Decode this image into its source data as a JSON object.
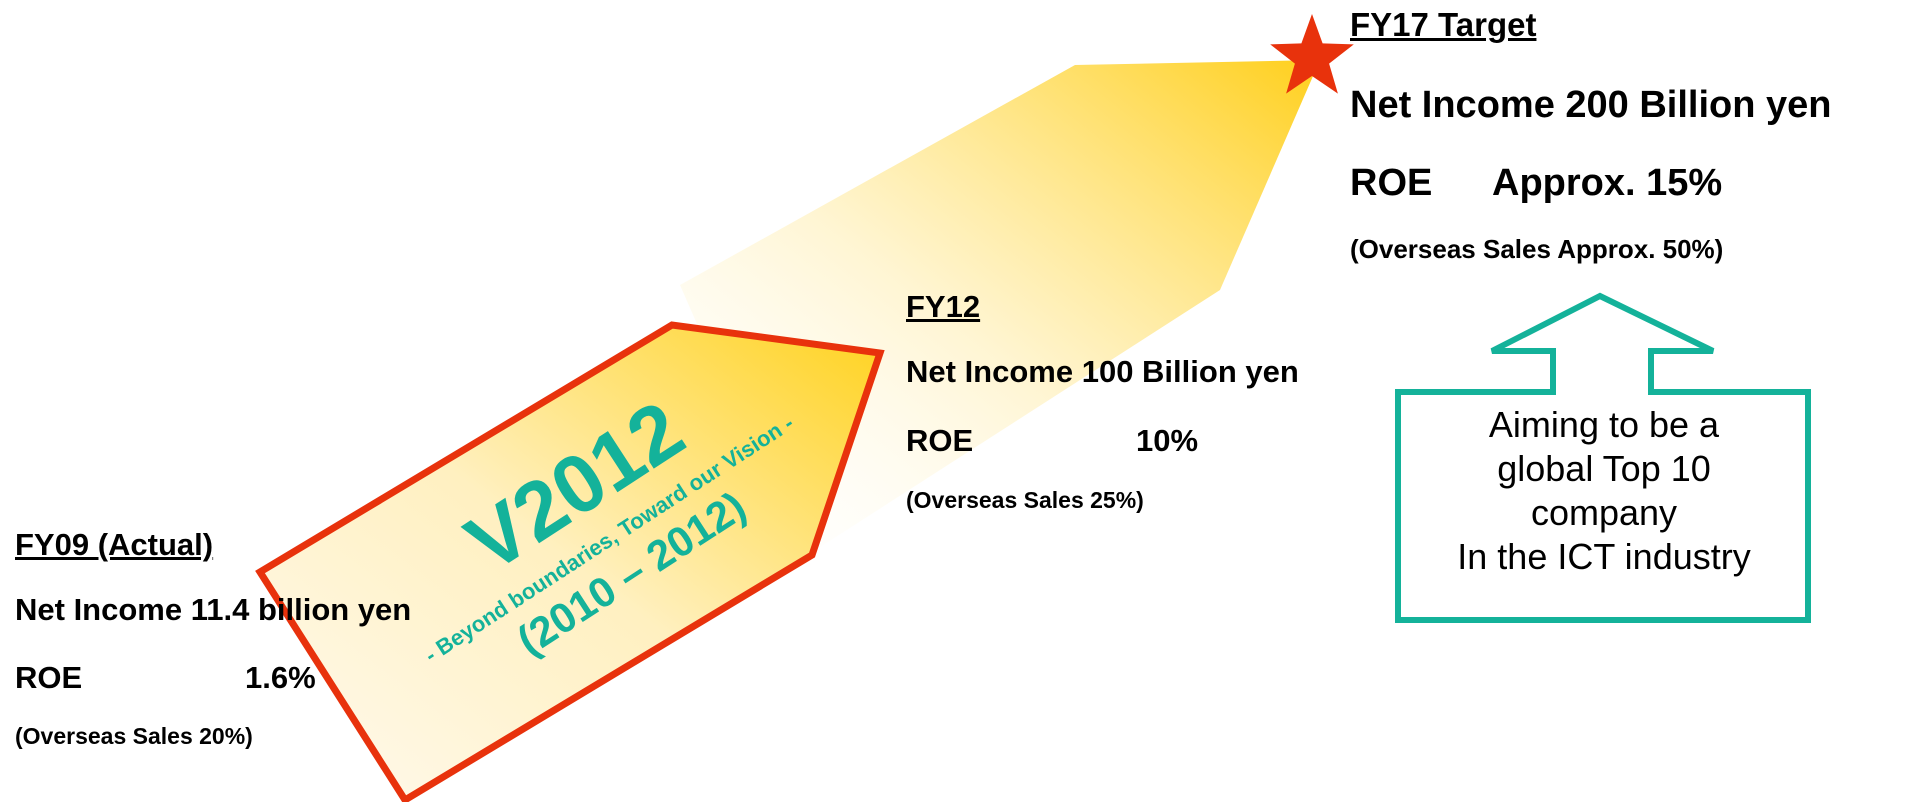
{
  "fy09": {
    "heading": "FY09 (Actual)",
    "net_income": "Net Income 11.4 billion yen",
    "roe_label": "ROE",
    "roe_value": "1.6%",
    "overseas": "(Overseas Sales 20%)"
  },
  "fy12": {
    "heading": "FY12",
    "net_income": "Net Income 100 Billion yen",
    "roe_label": "ROE",
    "roe_value": "10%",
    "overseas": "(Overseas Sales 25%)"
  },
  "fy17": {
    "heading": "FY17 Target",
    "net_income": "Net Income 200 Billion yen",
    "roe_label": "ROE",
    "roe_value": "Approx. 15%",
    "overseas": "(Overseas Sales Approx. 50%)"
  },
  "v2012": {
    "title": "V2012",
    "subtitle": "- Beyond boundaries, Toward our Vision -",
    "years": "(2010 – 2012)"
  },
  "callout": {
    "line1": "Aiming to be a",
    "line2": "global Top 10",
    "line3": "company",
    "line4": "In the ICT industry"
  },
  "colors": {
    "arrow_outline": "#e8320c",
    "teal": "#14b29a",
    "star": "#e8320c",
    "gold": "#ffd21e"
  },
  "icons": {
    "target_marker": "star-icon",
    "callout_arrow": "up-arrow-callout"
  }
}
